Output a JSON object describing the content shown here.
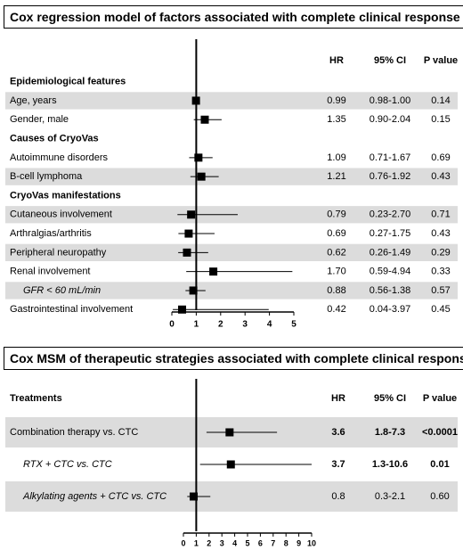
{
  "chart_data": [
    {
      "type": "forest",
      "title": "Cox regression model of factors associated with complete clinical response",
      "columns": [
        "HR",
        "95% CI",
        "P value"
      ],
      "xlim": [
        0,
        5
      ],
      "xticks": [
        "0",
        "1",
        "2",
        "3",
        "4",
        "5"
      ],
      "reference_line": 1,
      "rows": [
        {
          "kind": "header",
          "label": "Epidemiological features"
        },
        {
          "kind": "item",
          "label": "Age, years",
          "hr": 0.99,
          "lo": 0.98,
          "hi": 1.0,
          "hr_text": "0.99",
          "ci_text": "0.98-1.00",
          "p_text": "0.14",
          "shaded": true
        },
        {
          "kind": "item",
          "label": "Gender, male",
          "hr": 1.35,
          "lo": 0.9,
          "hi": 2.04,
          "hr_text": "1.35",
          "ci_text": "0.90-2.04",
          "p_text": "0.15",
          "shaded": false
        },
        {
          "kind": "header",
          "label": "Causes of CryoVas"
        },
        {
          "kind": "item",
          "label": "Autoimmune disorders",
          "hr": 1.09,
          "lo": 0.71,
          "hi": 1.67,
          "hr_text": "1.09",
          "ci_text": "0.71-1.67",
          "p_text": "0.69",
          "shaded": false
        },
        {
          "kind": "item",
          "label": "B-cell lymphoma",
          "hr": 1.21,
          "lo": 0.76,
          "hi": 1.92,
          "hr_text": "1.21",
          "ci_text": "0.76-1.92",
          "p_text": "0.43",
          "shaded": true
        },
        {
          "kind": "header",
          "label": "CryoVas manifestations"
        },
        {
          "kind": "item",
          "label": "Cutaneous involvement",
          "hr": 0.79,
          "lo": 0.23,
          "hi": 2.7,
          "hr_text": "0.79",
          "ci_text": "0.23-2.70",
          "p_text": "0.71",
          "shaded": true
        },
        {
          "kind": "item",
          "label": "Arthralgias/arthritis",
          "hr": 0.69,
          "lo": 0.27,
          "hi": 1.75,
          "hr_text": "0.69",
          "ci_text": "0.27-1.75",
          "p_text": "0.43",
          "shaded": false
        },
        {
          "kind": "item",
          "label": "Peripheral neuropathy",
          "hr": 0.62,
          "lo": 0.26,
          "hi": 1.49,
          "hr_text": "0.62",
          "ci_text": "0.26-1.49",
          "p_text": "0.29",
          "shaded": true
        },
        {
          "kind": "item",
          "label": "Renal involvement",
          "hr": 1.7,
          "lo": 0.59,
          "hi": 4.94,
          "hr_text": "1.70",
          "ci_text": "0.59-4.94",
          "p_text": "0.33",
          "shaded": false
        },
        {
          "kind": "item",
          "label": "GFR < 60 mL/min",
          "italic": true,
          "indent": true,
          "hr": 0.88,
          "lo": 0.56,
          "hi": 1.38,
          "hr_text": "0.88",
          "ci_text": "0.56-1.38",
          "p_text": "0.57",
          "shaded": true
        },
        {
          "kind": "item",
          "label": "Gastrointestinal involvement",
          "hr": 0.42,
          "lo": 0.04,
          "hi": 3.97,
          "hr_text": "0.42",
          "ci_text": "0.04-3.97",
          "p_text": "0.45",
          "shaded": false
        }
      ]
    },
    {
      "type": "forest",
      "title": "Cox MSM of therapeutic strategies associated with complete clinical response",
      "header_label": "Treatments",
      "columns": [
        "HR",
        "95% CI",
        "P value"
      ],
      "xlim": [
        0,
        10
      ],
      "xticks": [
        "0",
        "1",
        "2",
        "3",
        "4",
        "5",
        "6",
        "7",
        "8",
        "9",
        "10"
      ],
      "reference_line": 1,
      "rows": [
        {
          "kind": "item",
          "label": "Combination therapy vs. CTC",
          "hr": 3.6,
          "lo": 1.8,
          "hi": 7.3,
          "hr_text": "3.6",
          "ci_text": "1.8-7.3",
          "p_text": "<0.0001",
          "bold_values": true,
          "shaded": true
        },
        {
          "kind": "item",
          "label": "RTX + CTC vs. CTC",
          "italic": true,
          "indent": true,
          "hr": 3.7,
          "lo": 1.3,
          "hi": 10.6,
          "hr_text": "3.7",
          "ci_text": "1.3-10.6",
          "p_text": "0.01",
          "bold_values": true,
          "shaded": false
        },
        {
          "kind": "item",
          "label": "Alkylating agents + CTC vs. CTC",
          "italic": true,
          "indent": true,
          "hr": 0.8,
          "lo": 0.3,
          "hi": 2.1,
          "hr_text": "0.8",
          "ci_text": "0.3-2.1",
          "p_text": "0.60",
          "bold_values": false,
          "shaded": true
        }
      ]
    }
  ]
}
